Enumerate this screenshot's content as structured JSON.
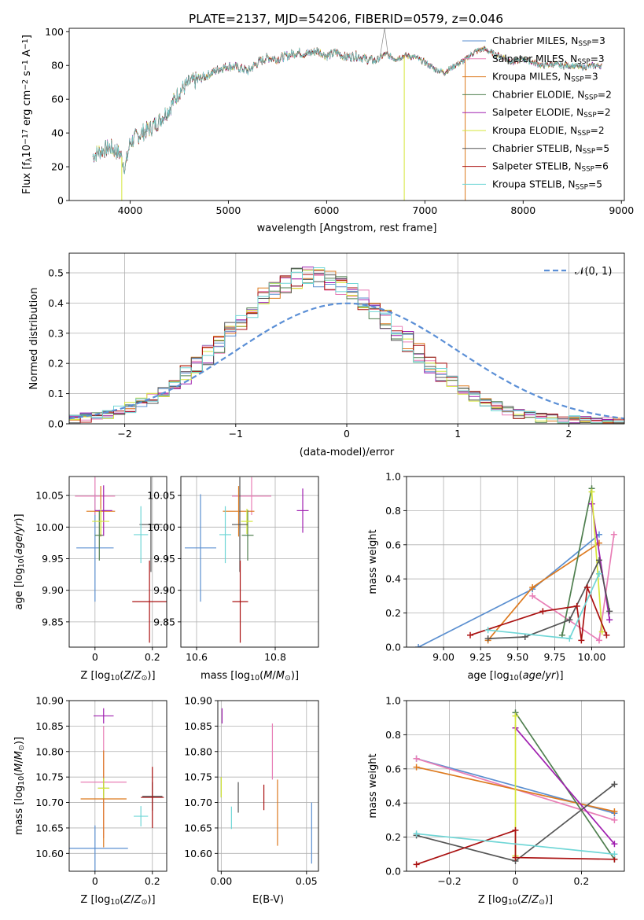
{
  "figure": {
    "title": "PLATE=2137, MJD=54206, FIBERID=0579, z=0.046"
  },
  "colors": {
    "chabrier_miles": "#5b8fd0",
    "salpeter_miles": "#e87eb6",
    "kroupa_miles": "#dd7a1f",
    "chabrier_elodie": "#4f7f4f",
    "salpeter_elodie": "#a020b0",
    "kroupa_elodie": "#d6e63a",
    "chabrier_stelib": "#555555",
    "salpeter_stelib": "#aa1111",
    "kroupa_stelib": "#6fd6d6",
    "normal_curve": "#5b8fd6",
    "grid": "#b0b0b0"
  },
  "chart_data": [
    {
      "type": "line",
      "panel": "spectrum",
      "xlabel": "wavelength [Angstrom, rest frame]",
      "ylabel_parts": [
        "Flux [f",
        "λ",
        "10",
        "−17",
        " erg cm",
        "−2",
        " s",
        "−1",
        " A",
        "−1",
        "]"
      ],
      "xlim": [
        3380,
        9030
      ],
      "ylim": [
        0,
        102
      ],
      "xticks": [
        4000,
        5000,
        6000,
        7000,
        8000,
        9000
      ],
      "yticks": [
        0,
        20,
        40,
        60,
        80,
        100
      ],
      "grid": false,
      "legend_position": "top-right",
      "legend": [
        {
          "base": "Chabrier MILES, N",
          "sub": "SSP",
          "val": "=3",
          "color_key": "chabrier_miles"
        },
        {
          "base": "Salpeter MILES, N",
          "sub": "SSP",
          "val": "=3",
          "color_key": "salpeter_miles"
        },
        {
          "base": "Kroupa MILES, N",
          "sub": "SSP",
          "val": "=3",
          "color_key": "kroupa_miles"
        },
        {
          "base": "Chabrier ELODIE, N",
          "sub": "SSP",
          "val": "=2",
          "color_key": "chabrier_elodie"
        },
        {
          "base": "Salpeter ELODIE, N",
          "sub": "SSP",
          "val": "=2",
          "color_key": "salpeter_elodie"
        },
        {
          "base": "Kroupa ELODIE, N",
          "sub": "SSP",
          "val": "=2",
          "color_key": "kroupa_elodie"
        },
        {
          "base": "Chabrier STELIB, N",
          "sub": "SSP",
          "val": "=5",
          "color_key": "chabrier_stelib"
        },
        {
          "base": "Salpeter STELIB, N",
          "sub": "SSP",
          "val": "=6",
          "color_key": "salpeter_stelib"
        },
        {
          "base": "Kroupa STELIB, N",
          "sub": "SSP",
          "val": "=5",
          "color_key": "kroupa_stelib"
        }
      ],
      "spectrum_envelope": {
        "x": [
          3620,
          3700,
          3800,
          3900,
          3950,
          4000,
          4100,
          4200,
          4300,
          4400,
          4500,
          4600,
          4700,
          4800,
          4900,
          5000,
          5100,
          5200,
          5300,
          5400,
          5500,
          5600,
          5700,
          5800,
          5900,
          6000,
          6100,
          6200,
          6300,
          6400,
          6500,
          6600,
          6700,
          6800,
          6900,
          7000,
          7100,
          7200,
          7300,
          7400,
          7500,
          7600,
          7700,
          7800,
          7900,
          8000,
          8100,
          8200,
          8300,
          8400,
          8500,
          8600,
          8700,
          8800
        ],
        "y": [
          27,
          30,
          32,
          28,
          20,
          35,
          40,
          43,
          48,
          55,
          65,
          70,
          72,
          75,
          78,
          80,
          79,
          77,
          82,
          85,
          84,
          86,
          88,
          87,
          89,
          86,
          88,
          85,
          86,
          84,
          83,
          87,
          84,
          86,
          85,
          82,
          78,
          76,
          80,
          83,
          88,
          90,
          87,
          85,
          82,
          84,
          82,
          80,
          81,
          80,
          80,
          79,
          80,
          80
        ]
      },
      "spectrum_dropouts": [
        {
          "x": 3915,
          "color_key": "kroupa_elodie"
        },
        {
          "x": 6790,
          "color_key": "kroupa_elodie"
        },
        {
          "x": 7410,
          "color_key": "kroupa_miles"
        }
      ],
      "spectrum_spike": {
        "x": 6590,
        "y": 102
      }
    },
    {
      "type": "bar",
      "panel": "residual-histogram",
      "xlabel": "(data-model)/error",
      "ylabel": "Normed distribution",
      "xlim": [
        -2.5,
        2.5
      ],
      "ylim": [
        0,
        0.565
      ],
      "xticks": [
        -2,
        -1,
        0,
        1,
        2
      ],
      "yticks": [
        0.0,
        0.1,
        0.2,
        0.3,
        0.4,
        0.5
      ],
      "grid": true,
      "legend_position": "top-right",
      "legend": {
        "label": "𝒩(0, 1)",
        "color_key": "normal_curve"
      },
      "bin_edges_start": -2.5,
      "bin_width": 0.1,
      "histogram_order": [
        "chabrier_miles",
        "salpeter_miles",
        "kroupa_miles",
        "chabrier_elodie",
        "salpeter_elodie",
        "kroupa_elodie",
        "chabrier_stelib",
        "salpeter_stelib",
        "kroupa_stelib"
      ],
      "histogram_mean": [
        0.017,
        0.02,
        0.026,
        0.034,
        0.042,
        0.054,
        0.068,
        0.085,
        0.106,
        0.131,
        0.16,
        0.192,
        0.228,
        0.266,
        0.305,
        0.344,
        0.382,
        0.416,
        0.446,
        0.468,
        0.483,
        0.489,
        0.486,
        0.475,
        0.458,
        0.436,
        0.41,
        0.38,
        0.346,
        0.31,
        0.273,
        0.238,
        0.203,
        0.17,
        0.141,
        0.115,
        0.092,
        0.073,
        0.057,
        0.044,
        0.034,
        0.026,
        0.02,
        0.015,
        0.012,
        0.01,
        0.008,
        0.007,
        0.006,
        0.005
      ],
      "histogram_spread": 0.035
    },
    {
      "type": "scatter",
      "panel": "age-vs-metallicity",
      "xlabel": "Z [log10(Z/Z⊙)]",
      "ylabel": "age  [log10(age/yr)]",
      "xlim": [
        -0.09,
        0.25
      ],
      "ylim": [
        9.81,
        10.08
      ],
      "xticks": [
        0.0,
        0.2
      ],
      "yticks": [
        9.85,
        9.9,
        9.95,
        10.0,
        10.05
      ],
      "grid": true,
      "points": [
        {
          "color_key": "chabrier_miles",
          "x": 0.0,
          "y": 9.967,
          "xerr": 0.065,
          "yerr": 0.085
        },
        {
          "color_key": "salpeter_miles",
          "x": 0.0,
          "y": 10.049,
          "xerr": 0.07,
          "yerr": 0.03
        },
        {
          "color_key": "kroupa_miles",
          "x": 0.02,
          "y": 10.025,
          "xerr": 0.05,
          "yerr": 0.04
        },
        {
          "color_key": "chabrier_elodie",
          "x": 0.015,
          "y": 9.987,
          "xerr": 0.015,
          "yerr": 0.04
        },
        {
          "color_key": "salpeter_elodie",
          "x": 0.03,
          "y": 10.026,
          "xerr": 0.03,
          "yerr": 0.04
        },
        {
          "color_key": "kroupa_elodie",
          "x": 0.02,
          "y": 10.009,
          "xerr": 0.03,
          "yerr": 0.02
        },
        {
          "color_key": "chabrier_stelib",
          "x": 0.195,
          "y": 10.004,
          "xerr": 0.04,
          "yerr": 0.075
        },
        {
          "color_key": "salpeter_stelib",
          "x": 0.19,
          "y": 9.882,
          "xerr": 0.06,
          "yerr": 0.065
        },
        {
          "color_key": "kroupa_stelib",
          "x": 0.16,
          "y": 9.988,
          "xerr": 0.025,
          "yerr": 0.045
        }
      ]
    },
    {
      "type": "scatter",
      "panel": "age-vs-mass",
      "xlabel": "mass [log10(M/M⊙)]",
      "ylabel": "",
      "xlim": [
        10.56,
        10.91
      ],
      "ylim": [
        9.81,
        10.08
      ],
      "xticks": [
        10.6,
        10.8
      ],
      "yticks": [
        9.85,
        9.9,
        9.95,
        10.0,
        10.05
      ],
      "grid": true,
      "points": [
        {
          "color_key": "chabrier_miles",
          "x": 10.61,
          "y": 9.967,
          "xerr": 0.04,
          "yerr": 0.085
        },
        {
          "color_key": "salpeter_miles",
          "x": 10.74,
          "y": 10.049,
          "xerr": 0.05,
          "yerr": 0.03
        },
        {
          "color_key": "kroupa_miles",
          "x": 10.707,
          "y": 10.025,
          "xerr": 0.04,
          "yerr": 0.04
        },
        {
          "color_key": "chabrier_elodie",
          "x": 10.73,
          "y": 9.987,
          "xerr": 0.015,
          "yerr": 0.04
        },
        {
          "color_key": "salpeter_elodie",
          "x": 10.87,
          "y": 10.026,
          "xerr": 0.015,
          "yerr": 0.035
        },
        {
          "color_key": "kroupa_elodie",
          "x": 10.728,
          "y": 10.009,
          "xerr": 0.015,
          "yerr": 0.02
        },
        {
          "color_key": "chabrier_stelib",
          "x": 10.71,
          "y": 10.004,
          "xerr": 0.02,
          "yerr": 0.075
        },
        {
          "color_key": "salpeter_stelib",
          "x": 10.711,
          "y": 9.882,
          "xerr": 0.02,
          "yerr": 0.065
        },
        {
          "color_key": "kroupa_stelib",
          "x": 10.673,
          "y": 9.988,
          "xerr": 0.015,
          "yerr": 0.045
        }
      ]
    },
    {
      "type": "line",
      "panel": "weight-vs-age",
      "xlabel": "age  [log10(age/yr)]",
      "ylabel": "mass weight",
      "xlim": [
        8.75,
        10.22
      ],
      "ylim": [
        0,
        1
      ],
      "xticks": [
        9.0,
        9.25,
        9.5,
        9.75,
        10.0
      ],
      "xticklabels": [
        "9.00",
        "9.25",
        "9.50",
        "9.75",
        "10.00"
      ],
      "yticks": [
        0.0,
        0.2,
        0.4,
        0.6,
        0.8,
        1.0
      ],
      "grid": true,
      "series": [
        {
          "color_key": "chabrier_miles",
          "x": [
            8.83,
            9.6,
            10.05
          ],
          "y": [
            0.0,
            0.34,
            0.66
          ]
        },
        {
          "color_key": "salpeter_miles",
          "x": [
            9.6,
            10.05,
            10.15
          ],
          "y": [
            0.3,
            0.04,
            0.66
          ]
        },
        {
          "color_key": "kroupa_miles",
          "x": [
            9.3,
            9.6,
            10.05
          ],
          "y": [
            0.04,
            0.35,
            0.61
          ]
        },
        {
          "color_key": "chabrier_elodie",
          "x": [
            9.8,
            10.0
          ],
          "y": [
            0.07,
            0.93
          ]
        },
        {
          "color_key": "salpeter_elodie",
          "x": [
            10.0,
            10.12
          ],
          "y": [
            0.84,
            0.16
          ]
        },
        {
          "color_key": "kroupa_elodie",
          "x": [
            10.0,
            10.07
          ],
          "y": [
            0.91,
            0.09
          ]
        },
        {
          "color_key": "chabrier_stelib",
          "x": [
            9.3,
            9.55,
            9.85,
            10.05,
            10.12
          ],
          "y": [
            0.05,
            0.06,
            0.16,
            0.51,
            0.21
          ]
        },
        {
          "color_key": "salpeter_stelib",
          "x": [
            9.18,
            9.67,
            9.9,
            9.93,
            9.97,
            10.1
          ],
          "y": [
            0.07,
            0.21,
            0.24,
            0.04,
            0.35,
            0.07
          ]
        },
        {
          "color_key": "kroupa_stelib",
          "x": [
            9.3,
            9.85,
            10.05
          ],
          "y": [
            0.1,
            0.05,
            0.43
          ]
        }
      ]
    },
    {
      "type": "scatter",
      "panel": "mass-vs-metallicity",
      "xlabel": "Z [log10(Z/Z⊙)]",
      "ylabel": "mass [log10(M/M⊙)]",
      "xlim": [
        -0.09,
        0.25
      ],
      "ylim": [
        10.565,
        10.9
      ],
      "xticks": [
        0.0,
        0.2
      ],
      "yticks": [
        10.6,
        10.65,
        10.7,
        10.75,
        10.8,
        10.85,
        10.9
      ],
      "grid": true,
      "points": [
        {
          "color_key": "chabrier_miles",
          "x": 0.0,
          "y": 10.61,
          "xerr": 0.115,
          "yerr": 0.045
        },
        {
          "color_key": "salpeter_miles",
          "x": 0.03,
          "y": 10.74,
          "xerr": 0.08,
          "yerr": 0.11
        },
        {
          "color_key": "kroupa_miles",
          "x": 0.03,
          "y": 10.707,
          "xerr": 0.08,
          "yerr": 0.095
        },
        {
          "color_key": "chabrier_elodie",
          "x": 0.03,
          "y": 10.728,
          "xerr": 0.02,
          "yerr": 0.02
        },
        {
          "color_key": "salpeter_elodie",
          "x": 0.03,
          "y": 10.87,
          "xerr": 0.035,
          "yerr": 0.015
        },
        {
          "color_key": "kroupa_elodie",
          "x": 0.03,
          "y": 10.728,
          "xerr": 0.02,
          "yerr": 0.02
        },
        {
          "color_key": "chabrier_stelib",
          "x": 0.2,
          "y": 10.712,
          "xerr": 0.035,
          "yerr": 0.028
        },
        {
          "color_key": "salpeter_stelib",
          "x": 0.2,
          "y": 10.71,
          "xerr": 0.04,
          "yerr": 0.06
        },
        {
          "color_key": "kroupa_stelib",
          "x": 0.16,
          "y": 10.673,
          "xerr": 0.025,
          "yerr": 0.02
        }
      ]
    },
    {
      "type": "scatter",
      "panel": "mass-vs-ebv",
      "xlabel": "E(B-V)",
      "ylabel": "",
      "xlim": [
        -0.002,
        0.057
      ],
      "ylim": [
        10.565,
        10.9
      ],
      "xticks": [
        0.0,
        0.05
      ],
      "xticklabels": [
        "0.00",
        "0.05"
      ],
      "yticks": [
        10.6,
        10.65,
        10.7,
        10.75,
        10.8,
        10.85,
        10.9
      ],
      "grid": true,
      "points": [
        {
          "color_key": "chabrier_miles",
          "x": 0.053,
          "y": 10.64,
          "xerr": 0.0,
          "yerr": 0.06
        },
        {
          "color_key": "salpeter_miles",
          "x": 0.03,
          "y": 10.8,
          "xerr": 0.0,
          "yerr": 0.055
        },
        {
          "color_key": "kroupa_miles",
          "x": 0.033,
          "y": 10.68,
          "xerr": 0.0,
          "yerr": 0.065
        },
        {
          "color_key": "chabrier_elodie",
          "x": 0.0,
          "y": 10.73,
          "xerr": 0.0,
          "yerr": 0.02
        },
        {
          "color_key": "salpeter_elodie",
          "x": 0.0005,
          "y": 10.87,
          "xerr": 0.0,
          "yerr": 0.015
        },
        {
          "color_key": "kroupa_elodie",
          "x": 0.0,
          "y": 10.73,
          "xerr": 0.0,
          "yerr": 0.02
        },
        {
          "color_key": "chabrier_stelib",
          "x": 0.01,
          "y": 10.71,
          "xerr": 0.0,
          "yerr": 0.03
        },
        {
          "color_key": "salpeter_stelib",
          "x": 0.025,
          "y": 10.71,
          "xerr": 0.0,
          "yerr": 0.025
        },
        {
          "color_key": "kroupa_stelib",
          "x": 0.006,
          "y": 10.67,
          "xerr": 0.0,
          "yerr": 0.022
        }
      ]
    },
    {
      "type": "line",
      "panel": "weight-vs-metallicity",
      "xlabel": "Z [log10(Z/Z⊙)]",
      "ylabel": "mass weight",
      "xlim": [
        -0.33,
        0.33
      ],
      "ylim": [
        0,
        1
      ],
      "xticks": [
        -0.2,
        0.0,
        0.2
      ],
      "yticks": [
        0.0,
        0.2,
        0.4,
        0.6,
        0.8,
        1.0
      ],
      "grid": true,
      "series": [
        {
          "color_key": "chabrier_miles",
          "x": [
            -0.3,
            0.3
          ],
          "y": [
            0.66,
            0.34
          ]
        },
        {
          "color_key": "salpeter_miles",
          "x": [
            -0.3,
            0.3
          ],
          "y": [
            0.66,
            0.3
          ]
        },
        {
          "color_key": "kroupa_miles",
          "x": [
            -0.3,
            0.3
          ],
          "y": [
            0.61,
            0.35
          ]
        },
        {
          "color_key": "chabrier_elodie",
          "x": [
            0.0,
            0.3
          ],
          "y": [
            0.93,
            0.07
          ]
        },
        {
          "color_key": "salpeter_elodie",
          "x": [
            0.0,
            0.3
          ],
          "y": [
            0.84,
            0.16
          ]
        },
        {
          "color_key": "kroupa_elodie",
          "x": [
            0.0,
            0.0
          ],
          "y": [
            0.91,
            0.09
          ]
        },
        {
          "color_key": "chabrier_stelib",
          "x": [
            -0.3,
            0.0,
            0.3
          ],
          "y": [
            0.21,
            0.06,
            0.51
          ]
        },
        {
          "color_key": "salpeter_stelib",
          "x": [
            -0.3,
            0.0,
            0.0,
            0.3
          ],
          "y": [
            0.04,
            0.24,
            0.08,
            0.07
          ]
        },
        {
          "color_key": "kroupa_stelib",
          "x": [
            -0.3,
            0.3
          ],
          "y": [
            0.22,
            0.1
          ]
        }
      ]
    }
  ]
}
